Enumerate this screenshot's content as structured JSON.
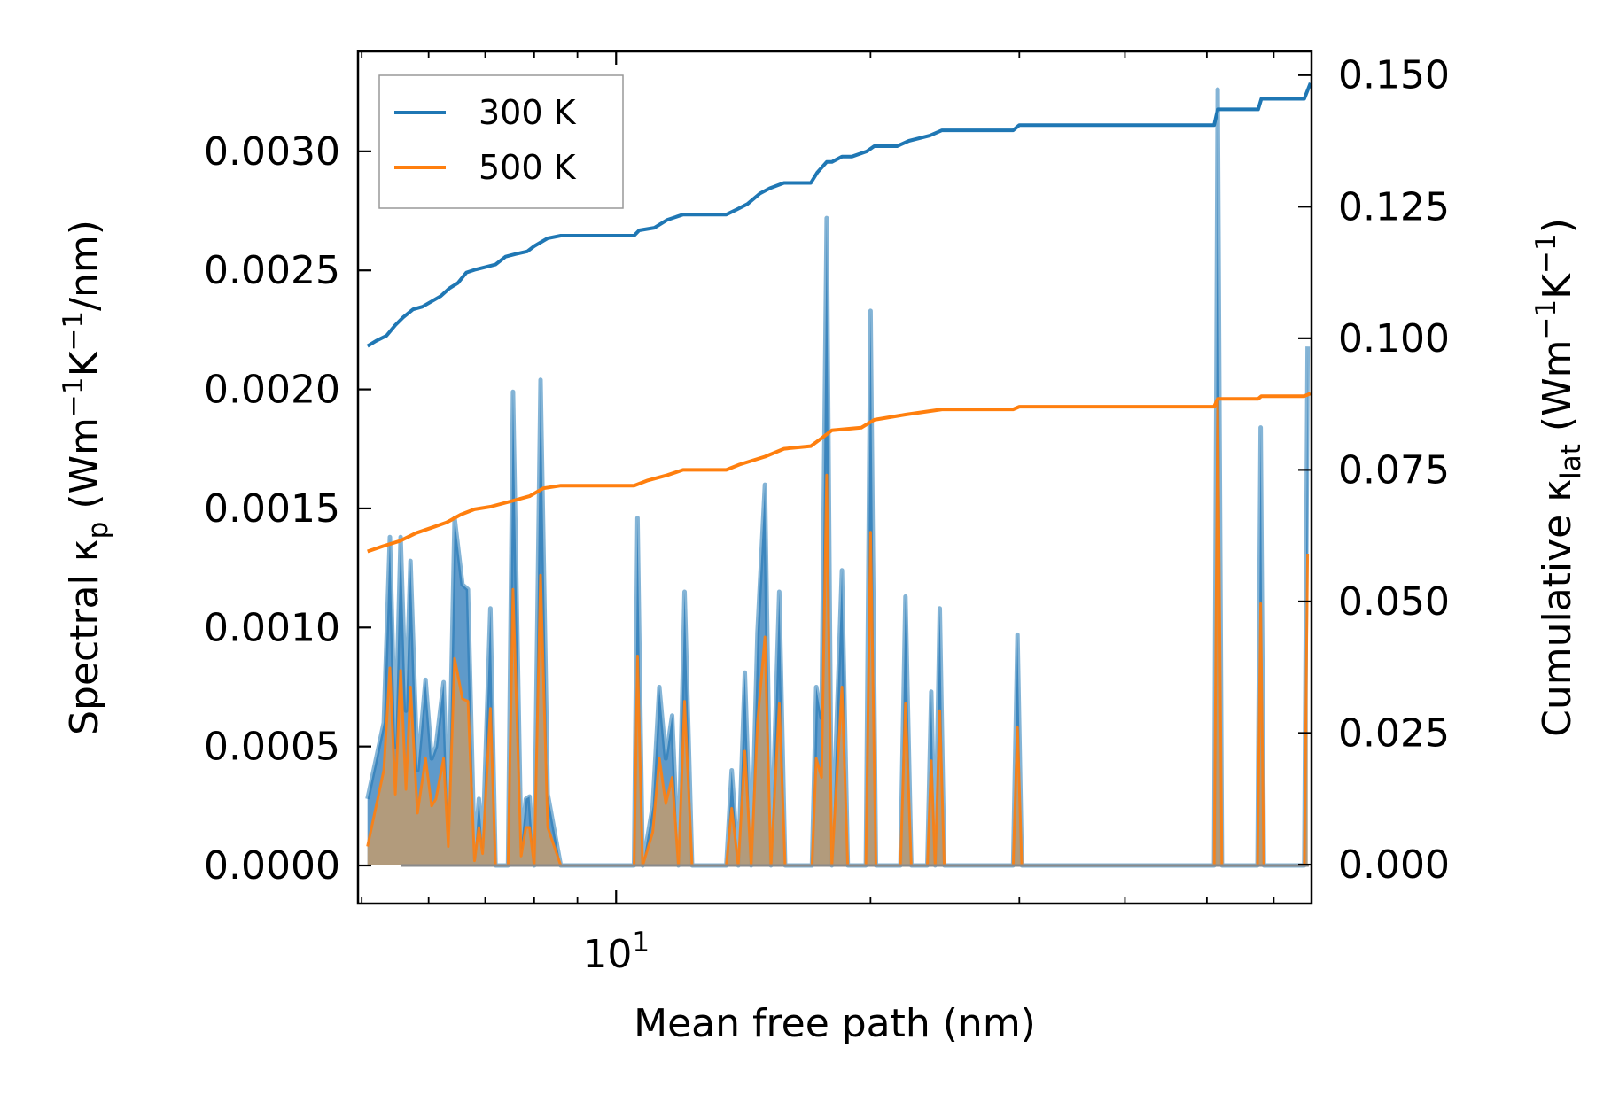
{
  "chart_data": {
    "type": "line",
    "title": "",
    "xlabel": "Mean free path (nm)",
    "xscale": "log",
    "xlim": [
      4.95,
      66.5
    ],
    "x_tick_labels": [
      {
        "value": 10,
        "base": "10",
        "exp": "1"
      }
    ],
    "y_left": {
      "label_main": "Spectral κ",
      "label_sub": "p",
      "label_tail": [
        [
          "(Wm",
          ""
        ],
        [
          "−1",
          "sup"
        ],
        [
          "K",
          ""
        ],
        [
          "−1",
          "sup"
        ],
        [
          "/nm)",
          ""
        ]
      ],
      "lim": [
        -0.00016,
        0.00342
      ],
      "ticks": [
        0.0,
        0.0005,
        0.001,
        0.0015,
        0.002,
        0.0025,
        0.003
      ],
      "tick_labels": [
        "0.0000",
        "0.0005",
        "0.0010",
        "0.0015",
        "0.0020",
        "0.0025",
        "0.0030"
      ]
    },
    "y_right": {
      "label_main": "Cumulative κ",
      "label_sub": "lat",
      "label_tail": [
        [
          "(Wm",
          ""
        ],
        [
          "−1",
          "sup"
        ],
        [
          "K",
          ""
        ],
        [
          "−1",
          "sup"
        ],
        [
          ")",
          ""
        ]
      ],
      "lim": [
        -0.0074,
        0.1545
      ],
      "ticks": [
        0.0,
        0.025,
        0.05,
        0.075,
        0.1,
        0.125,
        0.15
      ],
      "tick_labels": [
        "0.000",
        "0.025",
        "0.050",
        "0.075",
        "0.100",
        "0.125",
        "0.150"
      ]
    },
    "legend": {
      "position": "top-left",
      "entries": [
        "300 K",
        "500 K"
      ]
    },
    "colors": {
      "s300": "#1f77b4",
      "s500": "#ff7f0e",
      "fill300": "#4e8fc4",
      "fill500": "#e08a38",
      "mix": "#c19b6e"
    },
    "series": [
      {
        "name": "300 K",
        "axis": "left",
        "kind": "spectral",
        "points": [
          [
            5.08,
            0.00028
          ],
          [
            5.31,
            0.0006
          ],
          [
            5.4,
            0.00138
          ],
          [
            5.48,
            0.0005
          ],
          [
            5.56,
            0.00138
          ],
          [
            5.64,
            0.00065
          ],
          [
            5.71,
            0.00128
          ],
          [
            5.82,
            0.0004
          ],
          [
            5.95,
            0.00078
          ],
          [
            6.05,
            0.00045
          ],
          [
            6.12,
            0.0005
          ],
          [
            6.25,
            0.00077
          ],
          [
            6.33,
            0.00015
          ],
          [
            6.44,
            0.00146
          ],
          [
            6.58,
            0.00118
          ],
          [
            6.68,
            0.00116
          ],
          [
            6.8,
            3e-05
          ],
          [
            6.88,
            0.00028
          ],
          [
            6.95,
            8e-05
          ],
          [
            7.1,
            0.00108
          ],
          [
            7.2,
            0.0
          ],
          [
            7.45,
            0.0
          ],
          [
            7.55,
            0.00199
          ],
          [
            7.72,
            8e-05
          ],
          [
            7.82,
            0.00028
          ],
          [
            7.9,
            0.00029
          ],
          [
            8.0,
            0.0
          ],
          [
            8.14,
            0.00204
          ],
          [
            8.3,
            0.0003
          ],
          [
            8.6,
            0.0
          ],
          [
            10.5,
            0.0
          ],
          [
            10.6,
            0.00146
          ],
          [
            10.75,
            0.0
          ],
          [
            11.05,
            0.00025
          ],
          [
            11.25,
            0.00075
          ],
          [
            11.45,
            0.00045
          ],
          [
            11.65,
            0.00063
          ],
          [
            11.85,
            0.0
          ],
          [
            12.05,
            0.00115
          ],
          [
            12.3,
            0.0
          ],
          [
            13.5,
            0.0
          ],
          [
            13.7,
            0.0004
          ],
          [
            13.95,
            0.0
          ],
          [
            14.2,
            0.00081
          ],
          [
            14.45,
            0.0
          ],
          [
            14.7,
            0.00098
          ],
          [
            15.0,
            0.0016
          ],
          [
            15.25,
            0.0
          ],
          [
            15.6,
            0.00115
          ],
          [
            15.85,
            0.0
          ],
          [
            17.05,
            0.0
          ],
          [
            17.25,
            0.00075
          ],
          [
            17.5,
            0.00062
          ],
          [
            17.75,
            0.00272
          ],
          [
            18.0,
            0.0
          ],
          [
            18.5,
            0.00124
          ],
          [
            18.8,
            0.0
          ],
          [
            19.75,
            0.0
          ],
          [
            20.0,
            0.00233
          ],
          [
            20.3,
            0.0
          ],
          [
            21.7,
            0.0
          ],
          [
            22.0,
            0.00113
          ],
          [
            22.35,
            0.0
          ],
          [
            23.35,
            0.0
          ],
          [
            23.6,
            0.00073
          ],
          [
            23.85,
            0.0
          ],
          [
            24.15,
            0.00108
          ],
          [
            24.45,
            0.0
          ],
          [
            29.5,
            0.0
          ],
          [
            29.85,
            0.00097
          ],
          [
            30.2,
            0.0
          ],
          [
            51.0,
            0.0
          ],
          [
            51.5,
            0.00326
          ],
          [
            52.1,
            0.0
          ],
          [
            57.4,
            0.0
          ],
          [
            57.9,
            0.00184
          ],
          [
            58.4,
            0.0
          ],
          [
            65.2,
            0.0
          ],
          [
            65.8,
            0.00218
          ]
        ]
      },
      {
        "name": "500 K",
        "axis": "left",
        "kind": "spectral",
        "points": [
          [
            5.08,
            8e-05
          ],
          [
            5.31,
            0.0004
          ],
          [
            5.4,
            0.00083
          ],
          [
            5.48,
            0.0003
          ],
          [
            5.56,
            0.00082
          ],
          [
            5.64,
            0.00032
          ],
          [
            5.71,
            0.00075
          ],
          [
            5.82,
            0.00022
          ],
          [
            5.95,
            0.00045
          ],
          [
            6.05,
            0.00025
          ],
          [
            6.12,
            0.00028
          ],
          [
            6.25,
            0.00045
          ],
          [
            6.33,
            8e-05
          ],
          [
            6.44,
            0.00087
          ],
          [
            6.58,
            0.0007
          ],
          [
            6.68,
            0.00069
          ],
          [
            6.8,
            2e-05
          ],
          [
            6.88,
            0.00016
          ],
          [
            6.95,
            5e-05
          ],
          [
            7.1,
            0.00066
          ],
          [
            7.2,
            0.0
          ],
          [
            7.45,
            0.0
          ],
          [
            7.55,
            0.00116
          ],
          [
            7.72,
            4e-05
          ],
          [
            7.82,
            0.00016
          ],
          [
            7.9,
            0.00016
          ],
          [
            8.0,
            0.0
          ],
          [
            8.14,
            0.00122
          ],
          [
            8.3,
            0.00016
          ],
          [
            8.6,
            0.0
          ],
          [
            10.5,
            0.0
          ],
          [
            10.6,
            0.00088
          ],
          [
            10.75,
            0.0
          ],
          [
            11.05,
            0.00014
          ],
          [
            11.25,
            0.00045
          ],
          [
            11.45,
            0.00026
          ],
          [
            11.65,
            0.00037
          ],
          [
            11.85,
            0.0
          ],
          [
            12.05,
            0.00069
          ],
          [
            12.3,
            0.0
          ],
          [
            13.5,
            0.0
          ],
          [
            13.7,
            0.00024
          ],
          [
            13.95,
            0.0
          ],
          [
            14.2,
            0.00048
          ],
          [
            14.45,
            0.0
          ],
          [
            14.7,
            0.0006
          ],
          [
            15.0,
            0.00096
          ],
          [
            15.25,
            0.0
          ],
          [
            15.6,
            0.00068
          ],
          [
            15.85,
            0.0
          ],
          [
            17.05,
            0.0
          ],
          [
            17.25,
            0.00045
          ],
          [
            17.5,
            0.00037
          ],
          [
            17.75,
            0.00164
          ],
          [
            18.0,
            0.0
          ],
          [
            18.5,
            0.00075
          ],
          [
            18.8,
            0.0
          ],
          [
            19.75,
            0.0
          ],
          [
            20.0,
            0.0014
          ],
          [
            20.3,
            0.0
          ],
          [
            21.7,
            0.0
          ],
          [
            22.0,
            0.00068
          ],
          [
            22.35,
            0.0
          ],
          [
            23.35,
            0.0
          ],
          [
            23.6,
            0.00044
          ],
          [
            23.85,
            0.0
          ],
          [
            24.15,
            0.00065
          ],
          [
            24.45,
            0.0
          ],
          [
            29.5,
            0.0
          ],
          [
            29.85,
            0.00058
          ],
          [
            30.2,
            0.0
          ],
          [
            51.0,
            0.0
          ],
          [
            51.5,
            0.00196
          ],
          [
            52.1,
            0.0
          ],
          [
            57.4,
            0.0
          ],
          [
            57.9,
            0.0011
          ],
          [
            58.4,
            0.0
          ],
          [
            65.2,
            0.0
          ],
          [
            65.8,
            0.00131
          ]
        ]
      },
      {
        "name": "300 K",
        "axis": "right",
        "kind": "cumulative",
        "points": [
          [
            5.08,
            0.0985
          ],
          [
            5.2,
            0.0995
          ],
          [
            5.35,
            0.1005
          ],
          [
            5.48,
            0.1025
          ],
          [
            5.6,
            0.104
          ],
          [
            5.75,
            0.1055
          ],
          [
            5.9,
            0.106
          ],
          [
            6.05,
            0.107
          ],
          [
            6.2,
            0.108
          ],
          [
            6.35,
            0.1095
          ],
          [
            6.5,
            0.1105
          ],
          [
            6.65,
            0.1125
          ],
          [
            6.8,
            0.113
          ],
          [
            7.0,
            0.1135
          ],
          [
            7.2,
            0.114
          ],
          [
            7.4,
            0.1155
          ],
          [
            7.6,
            0.116
          ],
          [
            7.85,
            0.1165
          ],
          [
            8.0,
            0.1175
          ],
          [
            8.3,
            0.119
          ],
          [
            8.6,
            0.1195
          ],
          [
            10.5,
            0.1195
          ],
          [
            10.65,
            0.1205
          ],
          [
            11.1,
            0.121
          ],
          [
            11.5,
            0.1225
          ],
          [
            12.0,
            0.1235
          ],
          [
            13.5,
            0.1235
          ],
          [
            13.9,
            0.1245
          ],
          [
            14.3,
            0.1255
          ],
          [
            14.8,
            0.1275
          ],
          [
            15.2,
            0.1285
          ],
          [
            15.8,
            0.1295
          ],
          [
            17.0,
            0.1295
          ],
          [
            17.3,
            0.1315
          ],
          [
            17.75,
            0.1335
          ],
          [
            18.0,
            0.1335
          ],
          [
            18.5,
            0.1345
          ],
          [
            19.0,
            0.1345
          ],
          [
            19.8,
            0.1355
          ],
          [
            20.2,
            0.1365
          ],
          [
            21.5,
            0.1365
          ],
          [
            22.2,
            0.1375
          ],
          [
            23.5,
            0.1385
          ],
          [
            24.3,
            0.1395
          ],
          [
            29.5,
            0.1395
          ],
          [
            30.0,
            0.1405
          ],
          [
            51.0,
            0.1405
          ],
          [
            51.5,
            0.1435
          ],
          [
            57.5,
            0.1435
          ],
          [
            58.0,
            0.1455
          ],
          [
            65.2,
            0.1455
          ],
          [
            66.3,
            0.1485
          ]
        ]
      },
      {
        "name": "500 K",
        "axis": "right",
        "kind": "cumulative",
        "points": [
          [
            5.08,
            0.0595
          ],
          [
            5.3,
            0.0605
          ],
          [
            5.55,
            0.0615
          ],
          [
            5.8,
            0.063
          ],
          [
            6.05,
            0.064
          ],
          [
            6.3,
            0.065
          ],
          [
            6.55,
            0.0665
          ],
          [
            6.8,
            0.0675
          ],
          [
            7.1,
            0.068
          ],
          [
            7.5,
            0.069
          ],
          [
            7.9,
            0.07
          ],
          [
            8.2,
            0.0715
          ],
          [
            8.6,
            0.072
          ],
          [
            10.5,
            0.072
          ],
          [
            10.9,
            0.073
          ],
          [
            11.5,
            0.074
          ],
          [
            12.0,
            0.075
          ],
          [
            13.5,
            0.075
          ],
          [
            14.0,
            0.076
          ],
          [
            15.0,
            0.0775
          ],
          [
            15.8,
            0.079
          ],
          [
            17.0,
            0.0795
          ],
          [
            17.5,
            0.081
          ],
          [
            18.0,
            0.0825
          ],
          [
            19.5,
            0.083
          ],
          [
            20.2,
            0.0845
          ],
          [
            22.0,
            0.0855
          ],
          [
            24.3,
            0.0865
          ],
          [
            29.5,
            0.0865
          ],
          [
            30.0,
            0.087
          ],
          [
            51.0,
            0.087
          ],
          [
            51.5,
            0.0885
          ],
          [
            57.5,
            0.0885
          ],
          [
            58.0,
            0.089
          ],
          [
            65.2,
            0.089
          ],
          [
            66.3,
            0.0895
          ]
        ]
      }
    ]
  }
}
